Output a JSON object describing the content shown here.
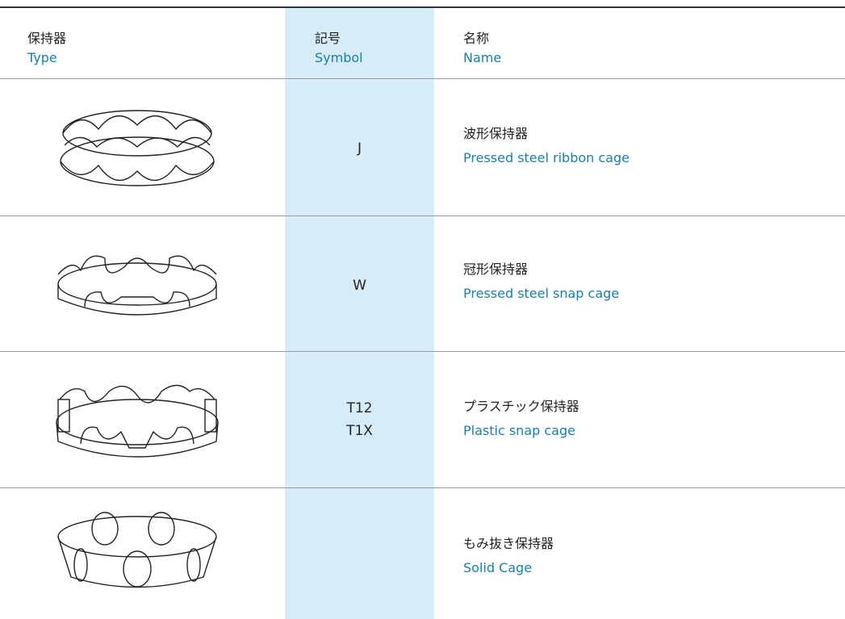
{
  "header": {
    "type": {
      "ja": "保持器",
      "en": "Type"
    },
    "symbol": {
      "ja": "記号",
      "en": "Symbol"
    },
    "name": {
      "ja": "名称",
      "en": "Name"
    }
  },
  "rows": [
    {
      "symbol": [
        "J"
      ],
      "name_ja": "波形保持器",
      "name_en": "Pressed steel ribbon cage"
    },
    {
      "symbol": [
        "W"
      ],
      "name_ja": "冠形保持器",
      "name_en": "Pressed steel snap cage"
    },
    {
      "symbol": [
        "T12",
        "T1X"
      ],
      "name_ja": "プラスチック保持器",
      "name_en": "Plastic snap cage"
    },
    {
      "name_ja": "もみ抜き保持器",
      "name_en": "Solid Cage"
    }
  ]
}
